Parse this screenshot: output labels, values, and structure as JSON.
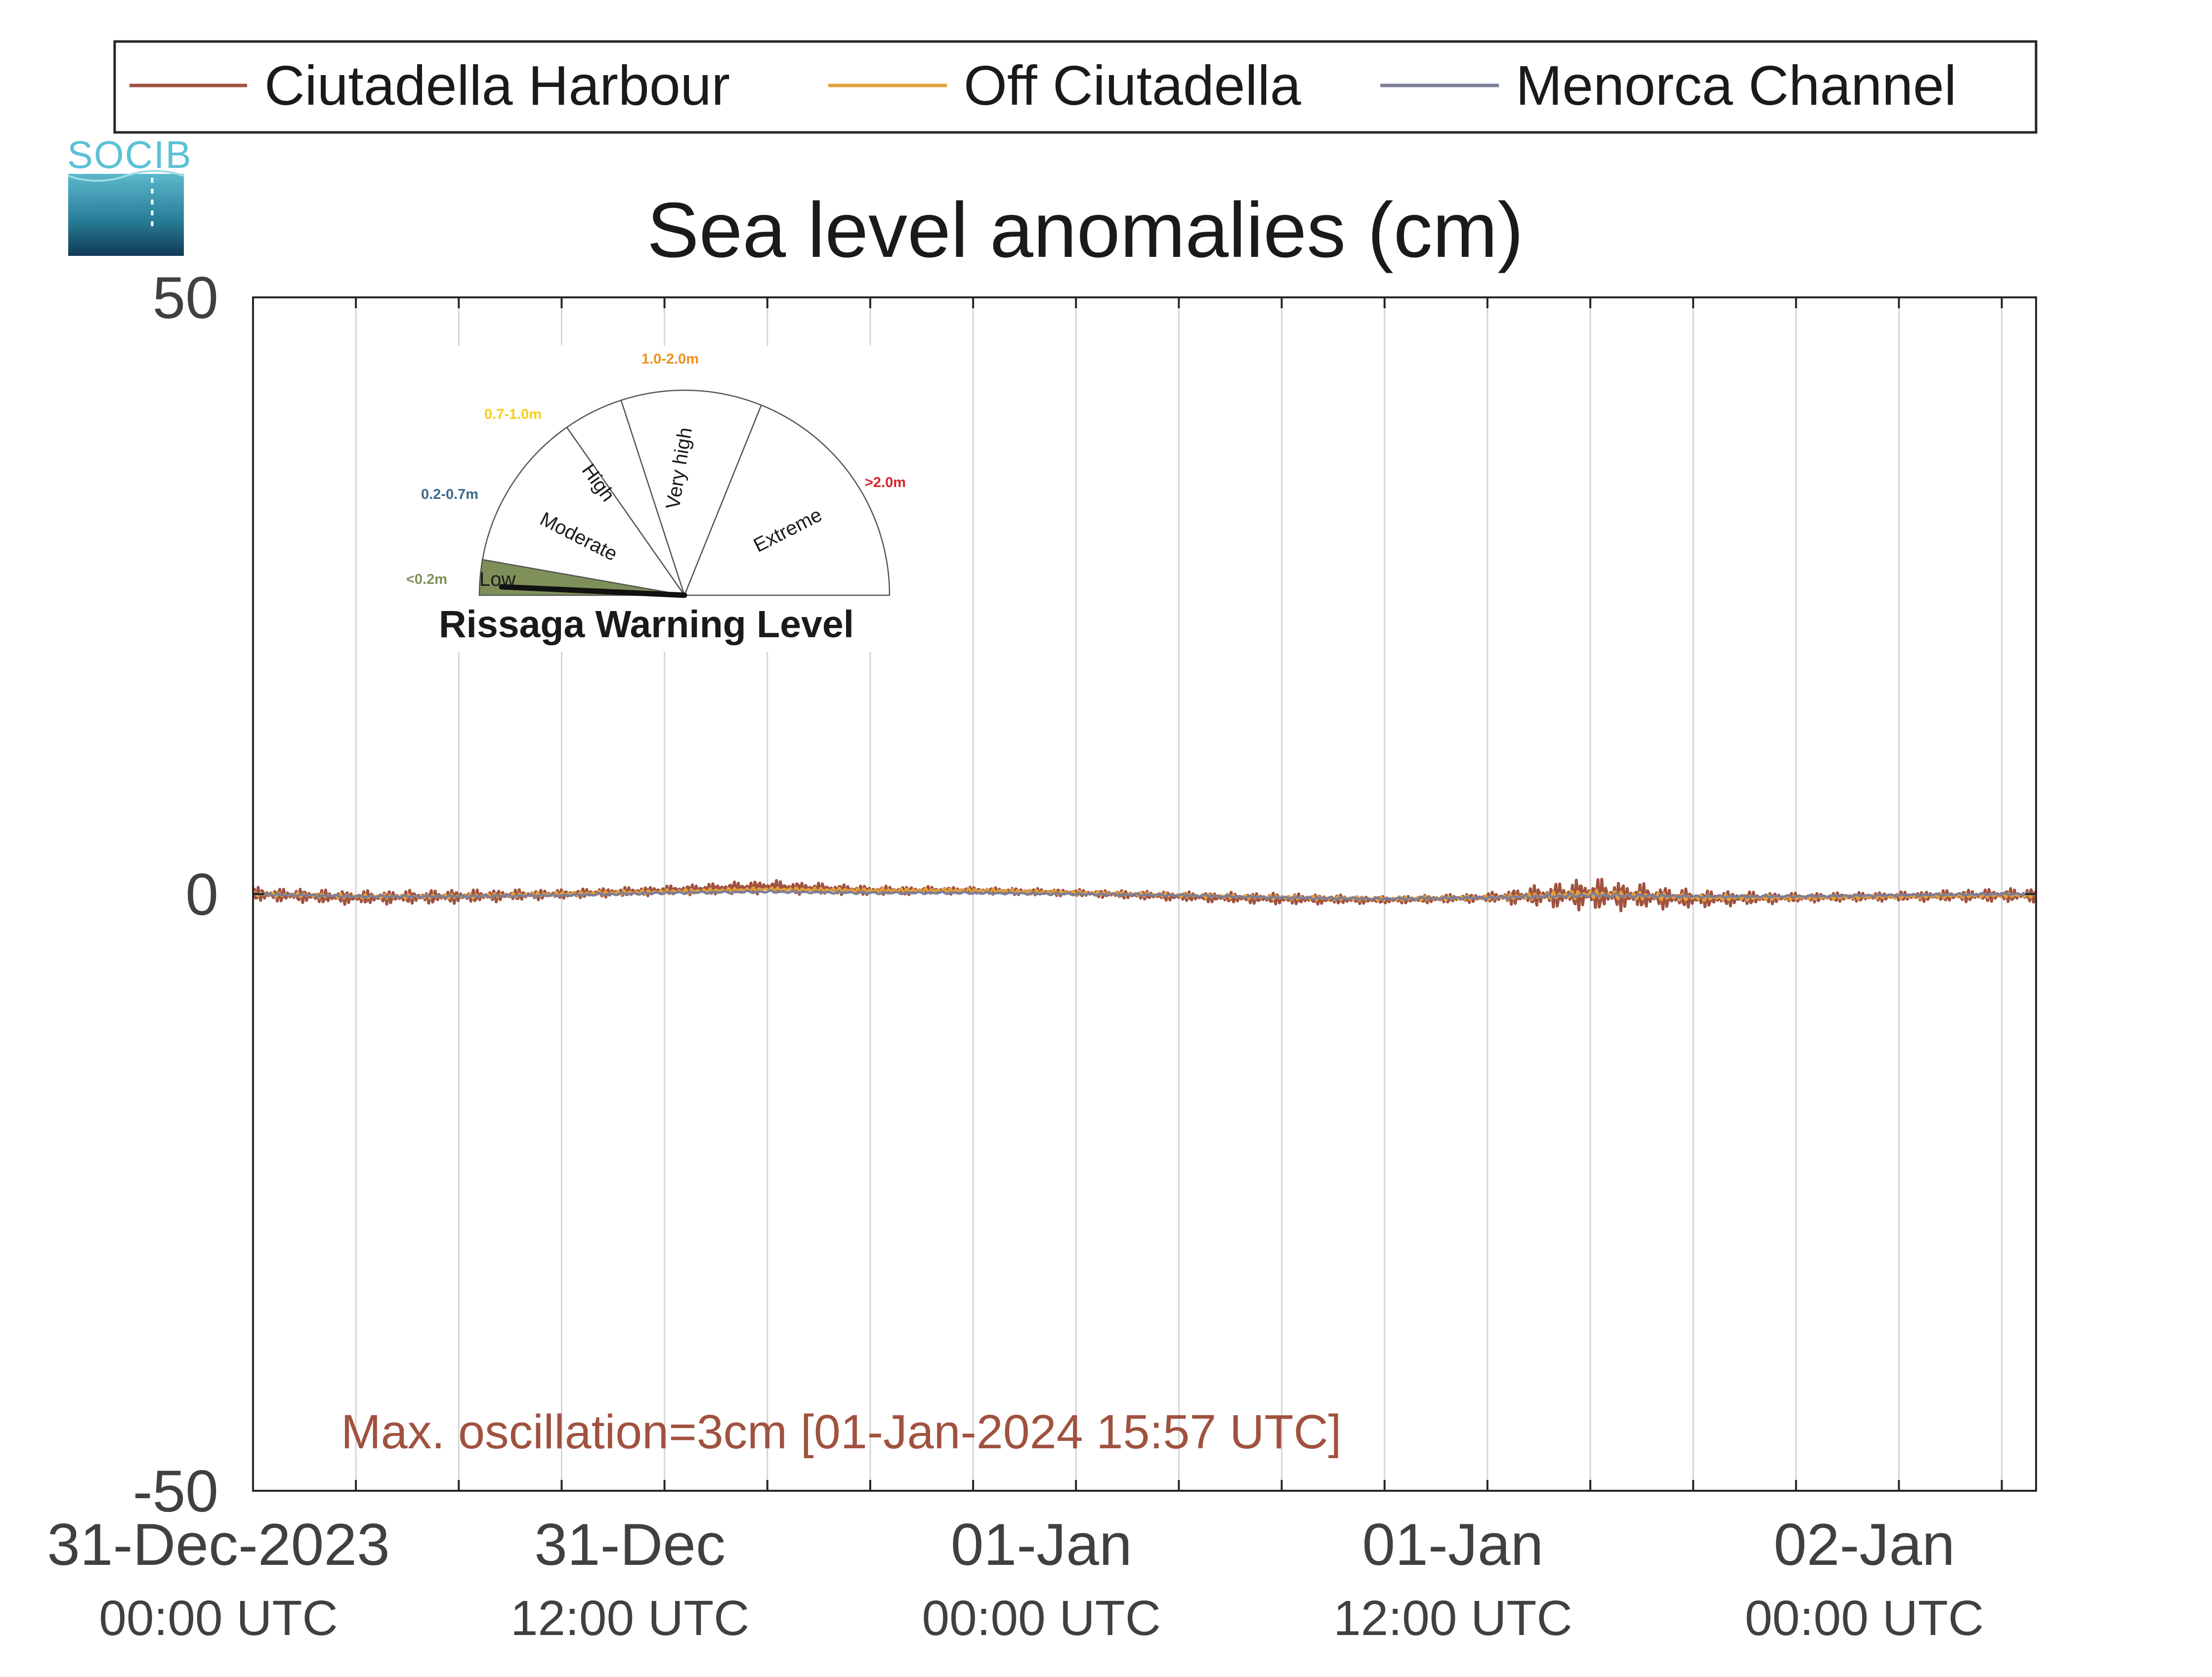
{
  "logo": {
    "text": "SOCIB"
  },
  "legend": {
    "entries": [
      {
        "label": "Ciutadella Harbour",
        "color": "#a0523f"
      },
      {
        "label": "Off Ciutadella",
        "color": "#e3a03a"
      },
      {
        "label": "Menorca Channel",
        "color": "#7c7f99"
      }
    ]
  },
  "gauge": {
    "title": "Rissaga Warning Level",
    "current_level": "Low",
    "sectors": [
      {
        "label": "Low",
        "range": "<0.2m",
        "range_color": "#7f8f5a",
        "fill": "#7f8f5a"
      },
      {
        "label": "Moderate",
        "range": "0.2-0.7m",
        "range_color": "#3a6a8a",
        "fill": "#ffffff"
      },
      {
        "label": "High",
        "range": "0.7-1.0m",
        "range_color": "#f2cf1e",
        "fill": "#ffffff"
      },
      {
        "label": "Very high",
        "range": "1.0-2.0m",
        "range_color": "#ec8f1e",
        "fill": "#ffffff"
      },
      {
        "label": "Extreme",
        "range": ">2.0m",
        "range_color": "#d8232a",
        "fill": "#ffffff"
      }
    ]
  },
  "annotation": {
    "text": "Max. oscillation=3cm [01-Jan-2024 15:57 UTC]",
    "color": "#a0523f"
  },
  "chart_data": {
    "type": "line",
    "title": "Sea level anomalies (cm)",
    "xlabel": "",
    "ylabel": "",
    "ylim": [
      -50,
      50
    ],
    "yticks": [
      -50,
      0,
      50
    ],
    "xlim": [
      "2023-12-31 00:00",
      "2024-01-02 04:00"
    ],
    "xtick_labels": [
      {
        "t": "2023-12-31 00:00",
        "line1": "31-Dec-2023",
        "line2": "00:00 UTC"
      },
      {
        "t": "2023-12-31 12:00",
        "line1": "31-Dec",
        "line2": "12:00 UTC"
      },
      {
        "t": "2024-01-01 00:00",
        "line1": "01-Jan",
        "line2": "00:00 UTC"
      },
      {
        "t": "2024-01-01 12:00",
        "line1": "01-Jan",
        "line2": "12:00 UTC"
      },
      {
        "t": "2024-01-02 00:00",
        "line1": "02-Jan",
        "line2": "00:00 UTC"
      }
    ],
    "grid_x_every_hours": 3,
    "grid": true,
    "legend_position": "top",
    "series": [
      {
        "name": "Ciutadella Harbour",
        "color": "#a0523f",
        "x": [
          "2023-12-31 00:00",
          "2023-12-31 03:00",
          "2023-12-31 06:00",
          "2023-12-31 09:00",
          "2023-12-31 12:00",
          "2023-12-31 15:00",
          "2023-12-31 18:00",
          "2023-12-31 21:00",
          "2024-01-01 00:00",
          "2024-01-01 03:00",
          "2024-01-01 06:00",
          "2024-01-01 09:00",
          "2024-01-01 12:00",
          "2024-01-01 15:00",
          "2024-01-01 18:00",
          "2024-01-01 21:00",
          "2024-01-02 00:00",
          "2024-01-02 03:00",
          "2024-01-02 04:00"
        ],
        "y": [
          0.0,
          -0.3,
          -0.2,
          0.0,
          0.3,
          0.6,
          0.3,
          0.3,
          0.1,
          -0.2,
          -0.4,
          -0.5,
          -0.3,
          0.0,
          -0.4,
          -0.3,
          -0.2,
          -0.1,
          -0.1
        ],
        "oscillation_cm": [
          0.6,
          0.6,
          0.6,
          0.4,
          0.4,
          0.6,
          0.4,
          0.3,
          0.3,
          0.4,
          0.5,
          0.3,
          0.4,
          1.5,
          0.8,
          0.4,
          0.4,
          0.6,
          0.6
        ]
      },
      {
        "name": "Off Ciutadella",
        "color": "#e3a03a",
        "x": [
          "2023-12-31 00:00",
          "2023-12-31 03:00",
          "2023-12-31 06:00",
          "2023-12-31 09:00",
          "2023-12-31 12:00",
          "2023-12-31 15:00",
          "2023-12-31 18:00",
          "2023-12-31 21:00",
          "2024-01-01 00:00",
          "2024-01-01 03:00",
          "2024-01-01 06:00",
          "2024-01-01 09:00",
          "2024-01-01 12:00",
          "2024-01-01 15:00",
          "2024-01-01 18:00",
          "2024-01-01 21:00",
          "2024-01-02 00:00",
          "2024-01-02 03:00",
          "2024-01-02 04:00"
        ],
        "y": [
          0.0,
          -0.2,
          -0.2,
          0.0,
          0.2,
          0.4,
          0.3,
          0.3,
          0.1,
          -0.1,
          -0.3,
          -0.4,
          -0.3,
          0.0,
          -0.3,
          -0.3,
          -0.2,
          -0.1,
          -0.1
        ],
        "oscillation_cm": [
          0.2,
          0.2,
          0.2,
          0.2,
          0.2,
          0.2,
          0.2,
          0.2,
          0.2,
          0.2,
          0.2,
          0.2,
          0.2,
          0.4,
          0.3,
          0.2,
          0.2,
          0.2,
          0.2
        ]
      },
      {
        "name": "Menorca Channel",
        "color": "#7c7f99",
        "x": [
          "2023-12-31 00:00",
          "2023-12-31 03:00",
          "2023-12-31 06:00",
          "2023-12-31 09:00",
          "2023-12-31 12:00",
          "2023-12-31 15:00",
          "2023-12-31 18:00",
          "2023-12-31 21:00",
          "2024-01-01 00:00",
          "2024-01-01 03:00",
          "2024-01-01 06:00",
          "2024-01-01 09:00",
          "2024-01-01 12:00",
          "2024-01-01 15:00",
          "2024-01-01 18:00",
          "2024-01-01 21:00",
          "2024-01-02 00:00",
          "2024-01-02 03:00",
          "2024-01-02 04:00"
        ],
        "y": [
          0.0,
          -0.2,
          -0.2,
          -0.1,
          0.1,
          0.2,
          0.1,
          0.1,
          0.0,
          -0.1,
          -0.3,
          -0.4,
          -0.3,
          -0.1,
          -0.2,
          -0.2,
          -0.1,
          0.0,
          0.0
        ],
        "oscillation_cm": [
          0.1,
          0.1,
          0.1,
          0.1,
          0.1,
          0.1,
          0.1,
          0.1,
          0.1,
          0.1,
          0.1,
          0.1,
          0.1,
          0.2,
          0.1,
          0.1,
          0.1,
          0.1,
          0.1
        ]
      }
    ]
  }
}
